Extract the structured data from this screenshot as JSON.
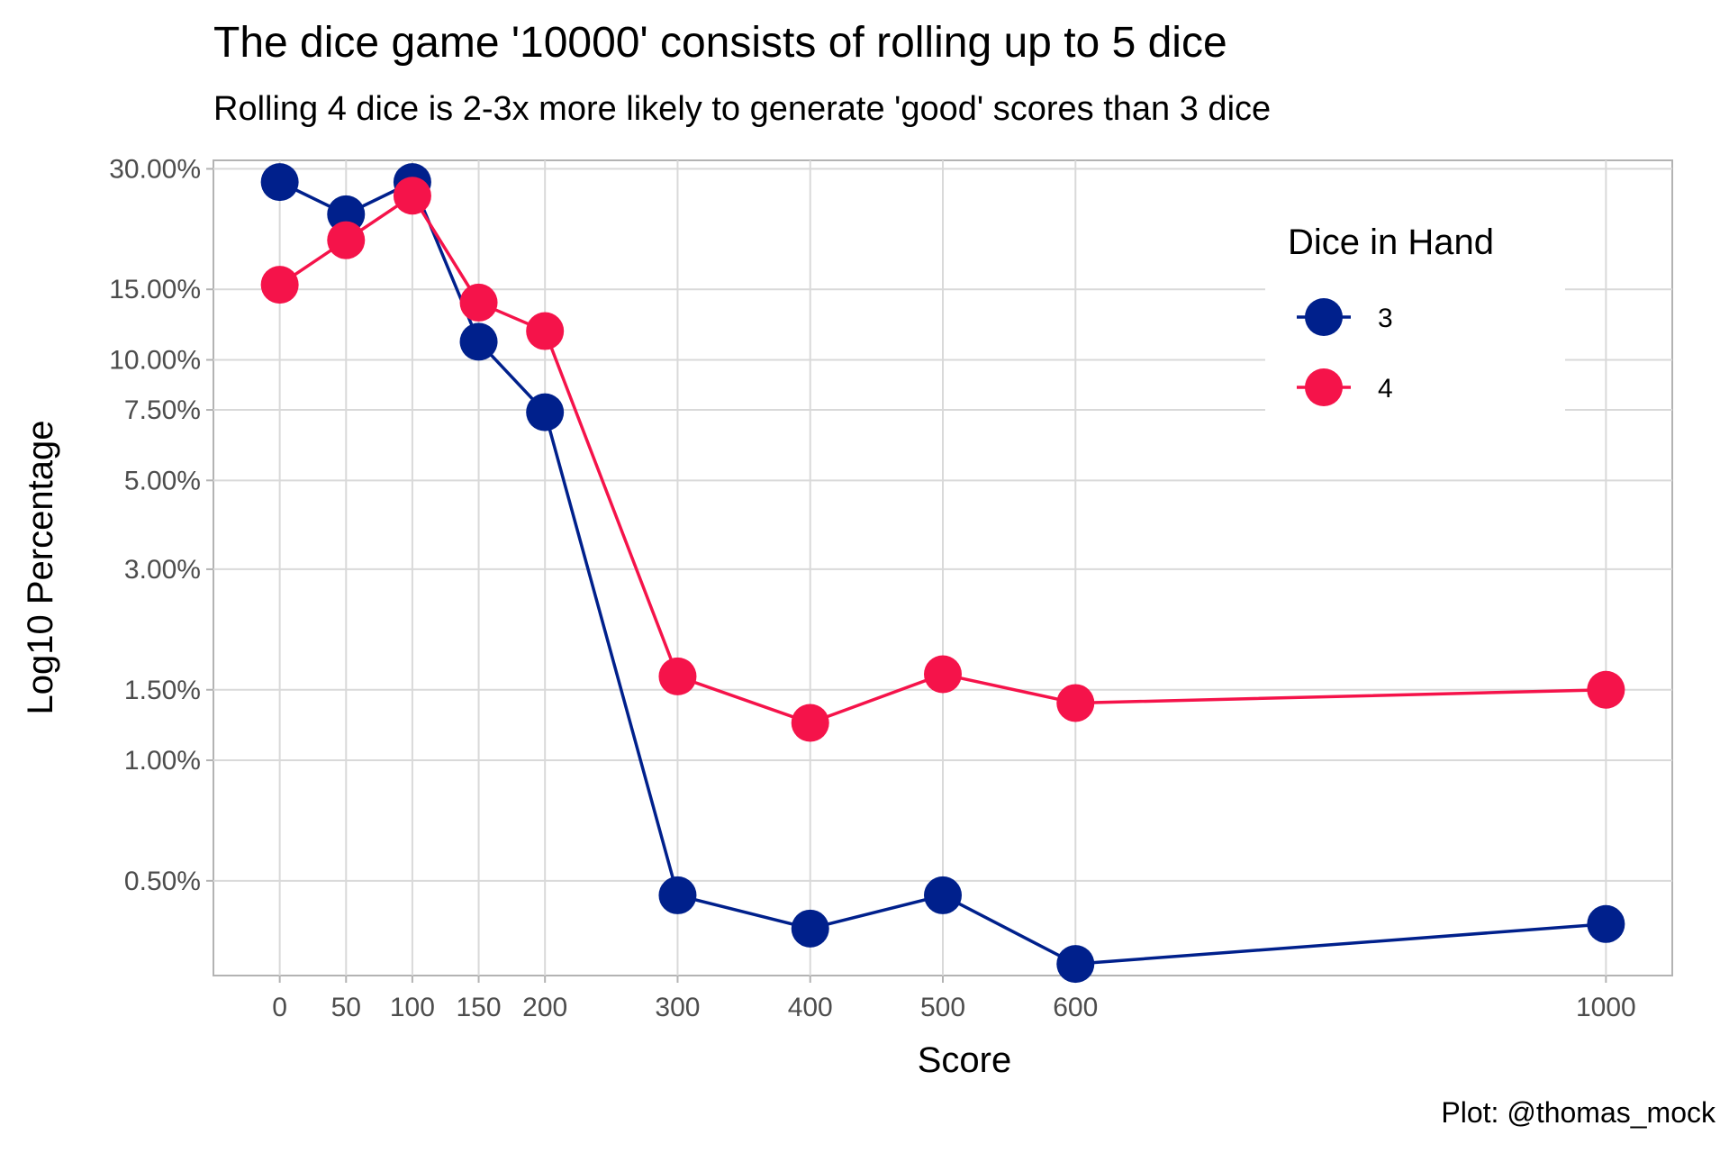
{
  "title": "The dice game '10000' consists of rolling up to 5 dice",
  "subtitle": "Rolling 4 dice is 2-3x more likely to generate 'good' scores than 3 dice",
  "caption": "Plot: @thomas_mock",
  "chart_data": {
    "type": "line",
    "xlabel": "Score",
    "ylabel": "Log10 Percentage",
    "y_scale": "log10",
    "x": [
      0,
      50,
      100,
      150,
      200,
      300,
      400,
      500,
      600,
      1000
    ],
    "x_ticks": [
      0,
      50,
      100,
      150,
      200,
      300,
      400,
      500,
      600,
      1000
    ],
    "x_tick_labels": [
      "0",
      "50",
      "100",
      "150",
      "200",
      "300",
      "400",
      "500",
      "600",
      "1000"
    ],
    "xlim": [
      -50,
      1050
    ],
    "y_ticks": [
      0.5,
      1,
      1.5,
      3,
      5,
      7.5,
      10,
      15,
      30
    ],
    "y_tick_labels": [
      "0.50%",
      "1.00%",
      "1.50%",
      "3.00%",
      "5.00%",
      "7.50%",
      "10.00%",
      "15.00%",
      "30.00%"
    ],
    "ylim": [
      0.29,
      31.5
    ],
    "grid": true,
    "legend": {
      "title": "Dice in Hand",
      "position": "top-right"
    },
    "series": [
      {
        "name": "3",
        "color": "#00208C",
        "values": [
          27.8,
          23.1,
          27.8,
          11.1,
          7.4,
          0.46,
          0.38,
          0.46,
          0.31,
          0.39
        ]
      },
      {
        "name": "4",
        "color": "#F5134A",
        "values": [
          15.4,
          19.9,
          25.7,
          13.9,
          11.8,
          1.62,
          1.24,
          1.64,
          1.39,
          1.5
        ]
      }
    ]
  }
}
